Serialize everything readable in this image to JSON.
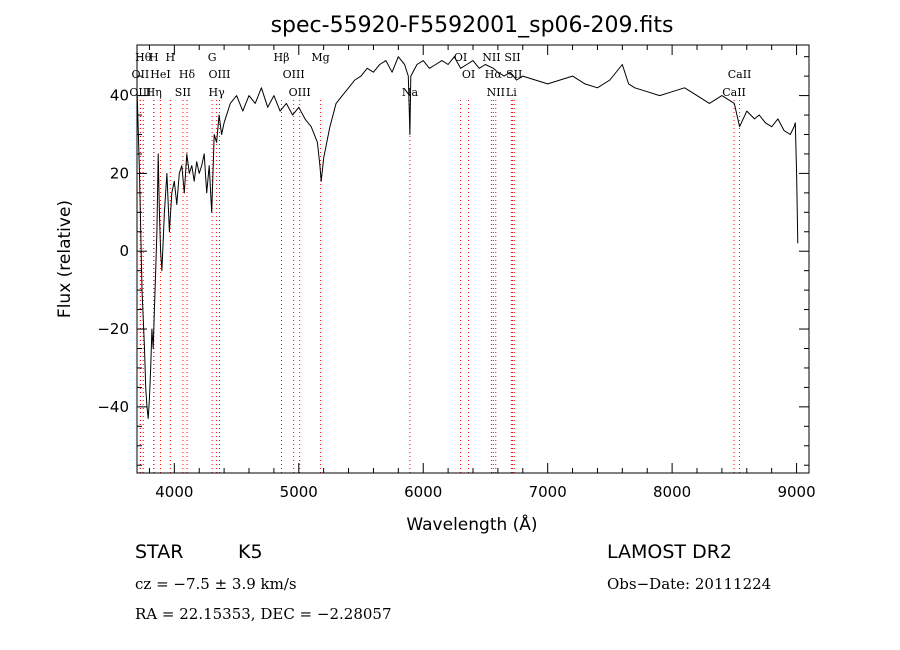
{
  "chart_data": {
    "type": "line",
    "title": "spec-55920-F5592001_sp06-209.fits",
    "xlabel": "Wavelength (Å)",
    "ylabel": "Flux (relative)",
    "xlim": [
      3700,
      9100
    ],
    "ylim": [
      -57,
      53
    ],
    "xticks": [
      4000,
      5000,
      6000,
      7000,
      8000,
      9000
    ],
    "yticks": [
      -40,
      -20,
      0,
      20,
      40
    ],
    "grid": false,
    "series": [
      {
        "x": [
          3700,
          3720,
          3740,
          3760,
          3770,
          3780,
          3790,
          3800,
          3810,
          3820,
          3830,
          3840,
          3850,
          3860,
          3870,
          3880,
          3890,
          3900,
          3920,
          3940,
          3960,
          3980,
          4000,
          4020,
          4040,
          4060,
          4080,
          4100,
          4120,
          4140,
          4160,
          4180,
          4200,
          4220,
          4240,
          4260,
          4280,
          4300,
          4320,
          4340,
          4360,
          4380,
          4400,
          4450,
          4500,
          4550,
          4600,
          4650,
          4700,
          4750,
          4800,
          4850,
          4900,
          4950,
          5000,
          5050,
          5100,
          5150,
          5170,
          5180,
          5200,
          5250,
          5300,
          5350,
          5400,
          5450,
          5500,
          5550,
          5600,
          5650,
          5700,
          5750,
          5800,
          5850,
          5880,
          5893,
          5900,
          5950,
          6000,
          6050,
          6100,
          6150,
          6200,
          6250,
          6300,
          6350,
          6400,
          6450,
          6500,
          6563,
          6600,
          6650,
          6700,
          6750,
          6800,
          6900,
          7000,
          7100,
          7200,
          7300,
          7400,
          7500,
          7600,
          7650,
          7700,
          7800,
          7900,
          8000,
          8100,
          8200,
          8300,
          8400,
          8500,
          8542,
          8600,
          8662,
          8700,
          8750,
          8800,
          8850,
          8900,
          8950,
          8980,
          8990,
          9000,
          9010
        ],
        "y": [
          42,
          20,
          -10,
          -25,
          -35,
          -40,
          -43,
          -38,
          -30,
          -20,
          -25,
          -15,
          -5,
          5,
          25,
          10,
          0,
          -5,
          10,
          20,
          5,
          15,
          18,
          12,
          20,
          22,
          15,
          25,
          20,
          22,
          18,
          23,
          20,
          22,
          25,
          15,
          22,
          10,
          30,
          28,
          35,
          30,
          33,
          38,
          40,
          36,
          40,
          38,
          42,
          37,
          40,
          36,
          38,
          35,
          37,
          34,
          32,
          28,
          22,
          18,
          24,
          32,
          38,
          40,
          42,
          44,
          45,
          47,
          46,
          48,
          49,
          46,
          50,
          48,
          45,
          30,
          45,
          48,
          49,
          47,
          48,
          49,
          48,
          50,
          47,
          48,
          49,
          47,
          48,
          47,
          46,
          45,
          46,
          44,
          45,
          44,
          43,
          44,
          45,
          43,
          42,
          44,
          48,
          43,
          42,
          41,
          40,
          41,
          42,
          40,
          38,
          40,
          38,
          32,
          36,
          34,
          35,
          33,
          32,
          34,
          31,
          30,
          32,
          33,
          20,
          2
        ]
      }
    ],
    "line_markers": [
      {
        "w": 3750,
        "label": "Hθ",
        "row": 1
      },
      {
        "w": 3727,
        "label": "OII",
        "row": 2
      },
      {
        "w": 3727,
        "label": "OIII",
        "row": 3
      },
      {
        "w": 3835,
        "label": "H",
        "row": 1
      },
      {
        "w": 3889,
        "label": "HeI",
        "row": 2
      },
      {
        "w": 3835,
        "label": "Hη",
        "row": 3
      },
      {
        "w": 3968,
        "label": "H",
        "row": 1
      },
      {
        "w": 4102,
        "label": "Hδ",
        "row": 2
      },
      {
        "w": 4069,
        "label": "SII",
        "row": 3
      },
      {
        "w": 4304,
        "label": "G",
        "row": 1
      },
      {
        "w": 4363,
        "label": "OIII",
        "row": 2
      },
      {
        "w": 4340,
        "label": "Hγ",
        "row": 3
      },
      {
        "w": 4861,
        "label": "Hβ",
        "row": 1
      },
      {
        "w": 4959,
        "label": "OIII",
        "row": 2
      },
      {
        "w": 5007,
        "label": "OIII",
        "row": 3
      },
      {
        "w": 5175,
        "label": "Mg",
        "row": 1
      },
      {
        "w": 5893,
        "label": "Na",
        "row": 3
      },
      {
        "w": 6300,
        "label": "OI",
        "row": 1
      },
      {
        "w": 6364,
        "label": "OI",
        "row": 2
      },
      {
        "w": 6548,
        "label": "NII",
        "row": 1
      },
      {
        "w": 6563,
        "label": "Hα",
        "row": 2
      },
      {
        "w": 6583,
        "label": "NII",
        "row": 3
      },
      {
        "w": 6717,
        "label": "SII",
        "row": 1
      },
      {
        "w": 6731,
        "label": "SII",
        "row": 2
      },
      {
        "w": 6708,
        "label": "Li",
        "row": 3
      },
      {
        "w": 8542,
        "label": "CaII",
        "row": 2
      },
      {
        "w": 8498,
        "label": "CaII",
        "row": 3
      }
    ]
  },
  "info": {
    "class": "STAR",
    "subclass": "K5",
    "survey": "LAMOST DR2",
    "cz": "cz = −7.5 ± 3.9 km/s",
    "obsdate": "Obs−Date: 20111224",
    "radec": "RA =  22.15353, DEC =  −2.28057"
  },
  "colors": {
    "marker": "#ff0000",
    "line": "#000000"
  }
}
